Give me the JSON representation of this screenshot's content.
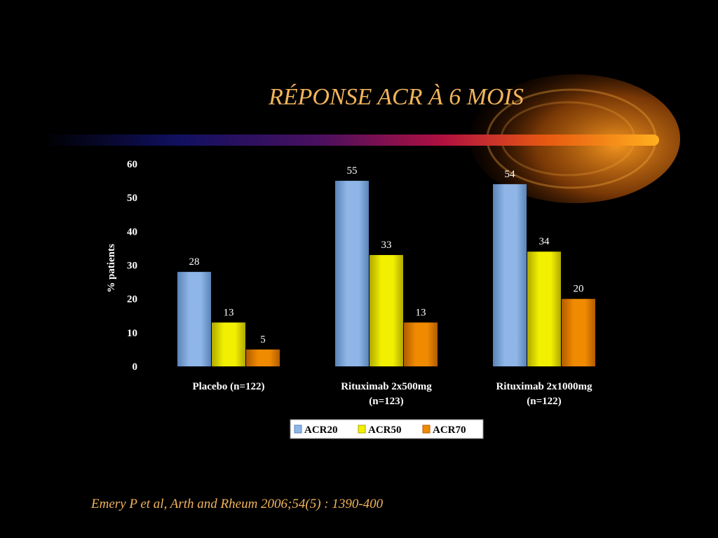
{
  "slide": {
    "title": "RÉPONSE ACR À 6 MOIS",
    "citation": "Emery P et al, Arth and Rheum 2006;54(5) : 1390-400"
  },
  "colors": {
    "background": "#000000",
    "title": "#f2b45a",
    "axis_text": "#ffffff",
    "acr20": "#8fb6e6",
    "acr50": "#f2f000",
    "acr70": "#f08a00"
  },
  "chart_data": {
    "type": "bar",
    "title": "",
    "xlabel": "",
    "ylabel": "% patients",
    "ylim": [
      0,
      60
    ],
    "yticks": [
      0,
      10,
      20,
      30,
      40,
      50,
      60
    ],
    "grid": false,
    "legend_position": "bottom",
    "categories": [
      [
        "Placebo (n=122)"
      ],
      [
        "Rituximab 2x500mg",
        "(n=123)"
      ],
      [
        "Rituximab 2x1000mg",
        "(n=122)"
      ]
    ],
    "series": [
      {
        "name": "ACR20",
        "values": [
          28,
          55,
          54
        ]
      },
      {
        "name": "ACR50",
        "values": [
          13,
          33,
          34
        ]
      },
      {
        "name": "ACR70",
        "values": [
          5,
          13,
          20
        ]
      }
    ]
  }
}
